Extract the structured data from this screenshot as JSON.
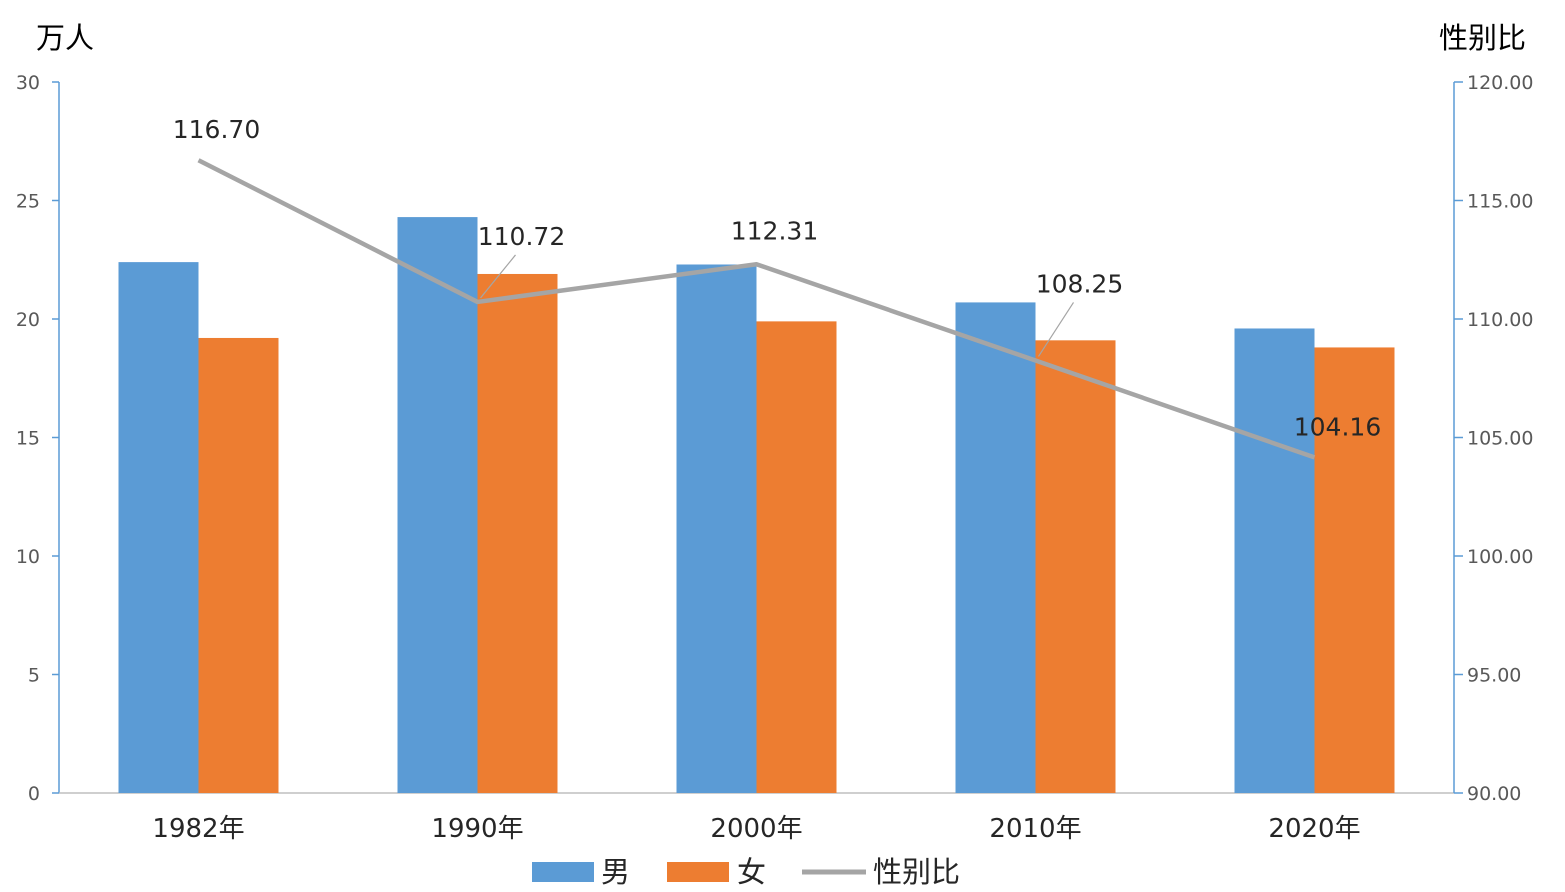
{
  "chart_data": {
    "type": "bar",
    "categories": [
      "1982年",
      "1990年",
      "2000年",
      "2010年",
      "2020年"
    ],
    "series": [
      {
        "name": "男",
        "type": "bar",
        "axis": "left",
        "color": "#5B9BD5",
        "values": [
          22.4,
          24.3,
          22.3,
          20.7,
          19.6
        ]
      },
      {
        "name": "女",
        "type": "bar",
        "axis": "left",
        "color": "#ED7D31",
        "values": [
          19.2,
          21.9,
          19.9,
          19.1,
          18.8
        ]
      },
      {
        "name": "性别比",
        "type": "line",
        "axis": "right",
        "color": "#A5A5A5",
        "values": [
          116.7,
          110.72,
          112.31,
          108.25,
          104.16
        ],
        "labels": [
          "116.70",
          "110.72",
          "112.31",
          "108.25",
          "104.16"
        ]
      }
    ],
    "ylabel_left": "万人",
    "ylabel_right": "性别比",
    "ylim_left": [
      0,
      30
    ],
    "ylim_right": [
      90,
      120
    ],
    "yticks_left": [
      "0",
      "5",
      "10",
      "15",
      "20",
      "25",
      "30"
    ],
    "yticks_right": [
      "90.00",
      "95.00",
      "100.00",
      "105.00",
      "110.00",
      "115.00",
      "120.00"
    ],
    "grid": false,
    "legend_position": "bottom"
  }
}
